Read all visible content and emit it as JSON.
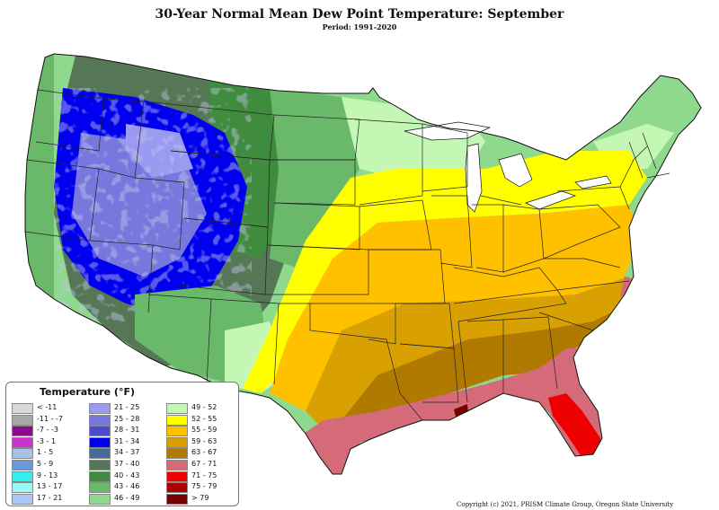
{
  "header": {
    "title": "30-Year Normal Mean Dew Point Temperature: September",
    "period": "Period: 1991-2020"
  },
  "legend": {
    "title": "Temperature (°F)",
    "items": [
      {
        "label": "< -11",
        "color": "#d8d8d8"
      },
      {
        "label": "-11 - -7",
        "color": "#a8a8a8"
      },
      {
        "label": "-7 - -3",
        "color": "#8a0a8a"
      },
      {
        "label": "-3 - 1",
        "color": "#cc33cc"
      },
      {
        "label": "1 - 5",
        "color": "#a9c1e4"
      },
      {
        "label": "5 - 9",
        "color": "#6d98d6"
      },
      {
        "label": "9 - 13",
        "color": "#33f0f0"
      },
      {
        "label": "13 - 17",
        "color": "#99f8f8"
      },
      {
        "label": "17 - 21",
        "color": "#a8c8f8"
      },
      {
        "label": "21 - 25",
        "color": "#9a9af0"
      },
      {
        "label": "25 - 28",
        "color": "#7777dd"
      },
      {
        "label": "28 - 31",
        "color": "#4b4bd0"
      },
      {
        "label": "31 - 34",
        "color": "#0000ee"
      },
      {
        "label": "34 - 37",
        "color": "#466c9a"
      },
      {
        "label": "37 - 40",
        "color": "#557755"
      },
      {
        "label": "40 - 43",
        "color": "#3f8c3f"
      },
      {
        "label": "43 - 46",
        "color": "#6ab86a"
      },
      {
        "label": "46 - 49",
        "color": "#8fd98f"
      },
      {
        "label": "49 - 52",
        "color": "#c4f7b4"
      },
      {
        "label": "52 - 55",
        "color": "#ffff00"
      },
      {
        "label": "55 - 59",
        "color": "#ffc000"
      },
      {
        "label": "59 - 63",
        "color": "#d8a000"
      },
      {
        "label": "63 - 67",
        "color": "#b07a00"
      },
      {
        "label": "67 - 71",
        "color": "#d56b78"
      },
      {
        "label": "71 - 75",
        "color": "#ee0000"
      },
      {
        "label": "75 - 79",
        "color": "#aa0000"
      },
      {
        "label": "> 79",
        "color": "#770000"
      }
    ]
  },
  "footer": {
    "copyright": "Copyright (c) 2021, PRISM Climate Group, Oregon State University"
  }
}
